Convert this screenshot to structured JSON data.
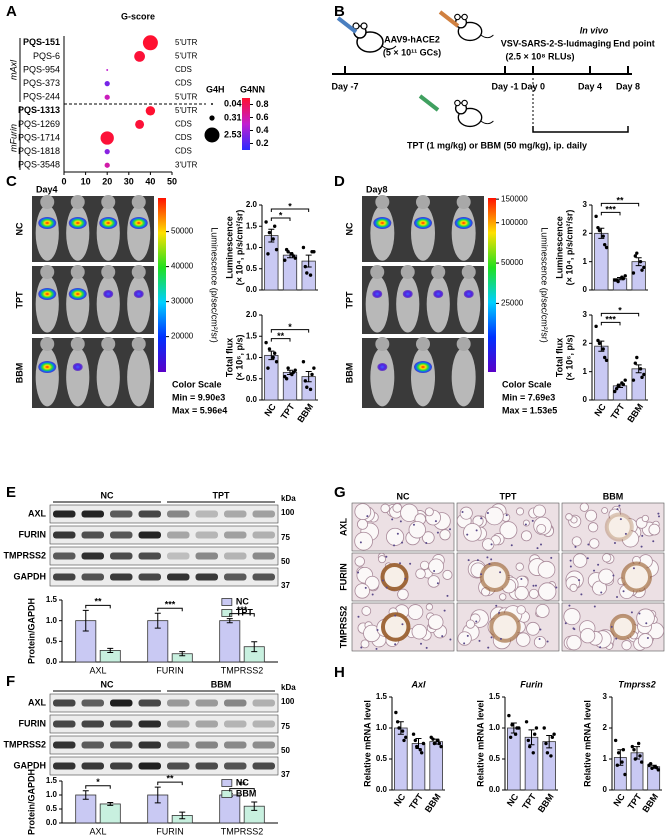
{
  "panel_labels": [
    "A",
    "B",
    "C",
    "D",
    "E",
    "F",
    "G",
    "H"
  ],
  "chart_data": [
    {
      "type": "bubble",
      "title": "G-score",
      "groups": [
        {
          "name": "mAxl",
          "categories": [
            "PQS-151",
            "PQS-6",
            "PQS-954",
            "PQS-373",
            "PQS-244"
          ],
          "regions": [
            "5'UTR",
            "5'UTR",
            "CDS",
            "CDS",
            "5'UTR"
          ],
          "x": [
            40,
            35,
            20,
            20,
            20
          ],
          "size": [
            2.53,
            1.3,
            0.04,
            0.31,
            0.31
          ],
          "g4nn": [
            0.9,
            0.88,
            0.5,
            0.3,
            0.55
          ]
        },
        {
          "name": "mFurin",
          "categories": [
            "PQS-1313",
            "PQS-1269",
            "PQS-1714",
            "PQS-1818",
            "PQS-3548"
          ],
          "regions": [
            "5'UTR",
            "CDS",
            "CDS",
            "CDS",
            "3'UTR"
          ],
          "x": [
            40,
            35,
            20,
            20,
            20
          ],
          "size": [
            1.0,
            0.9,
            2.0,
            0.31,
            0.31
          ],
          "g4nn": [
            0.9,
            0.88,
            0.88,
            0.35,
            0.6
          ]
        }
      ],
      "xlim": [
        0,
        50
      ],
      "xticks": [
        0,
        10,
        20,
        30,
        40,
        50
      ],
      "size_legend": {
        "title": "G4H",
        "values": [
          0.04,
          0.31,
          2.53
        ]
      },
      "color_legend": {
        "title": "G4NN",
        "lim": [
          0.1,
          0.9
        ],
        "ticks": [
          0.2,
          0.4,
          0.6,
          0.8
        ]
      }
    },
    {
      "type": "bar",
      "ylabel": [
        "Luminescence",
        "(× 10⁴, p/s/cm²/sr)"
      ],
      "categories": [
        null,
        null,
        null
      ],
      "values": [
        1.28,
        0.82,
        0.68
      ],
      "errors": [
        0.15,
        0.06,
        0.14
      ],
      "points": [
        [
          1.6,
          1.35,
          1.2,
          0.95,
          0.85,
          1.5
        ],
        [
          0.7,
          0.9,
          0.85,
          0.75,
          0.95,
          0.8
        ],
        [
          1.0,
          0.4,
          0.35,
          0.9,
          0.55,
          0.9
        ]
      ],
      "ylim": [
        0,
        2
      ],
      "yticks": [
        {
          "value": 0,
          "label": "0.0"
        },
        0.5,
        {
          "value": 1,
          "label": "1.0"
        },
        1.5,
        {
          "value": 2,
          "label": "2.0"
        }
      ],
      "color": "#c9c9f3",
      "annotations": [
        {
          "text": "*",
          "bracket": [
            0,
            1
          ]
        },
        {
          "text": "*",
          "bracket": [
            0,
            2
          ]
        }
      ]
    },
    {
      "type": "bar",
      "ylabel": [
        "Total flux",
        "(× 10⁶, p/s)"
      ],
      "categories": [
        "NC",
        "TPT",
        "BBM"
      ],
      "values": [
        1.05,
        0.65,
        0.55
      ],
      "errors": [
        0.1,
        0.05,
        0.12
      ],
      "points": [
        [
          1.35,
          1.2,
          1.0,
          0.9,
          0.75,
          1.1
        ],
        [
          0.55,
          0.75,
          0.6,
          0.7,
          0.5,
          0.65
        ],
        [
          0.9,
          0.3,
          0.25,
          0.75,
          0.45,
          0.6
        ]
      ],
      "ylim": [
        0,
        2
      ],
      "yticks": [
        {
          "value": 0,
          "label": "0.0"
        },
        0.5,
        {
          "value": 1,
          "label": "1.0"
        },
        1.5,
        {
          "value": 2,
          "label": "2.0"
        }
      ],
      "color": "#c9c9f3",
      "annotations": [
        {
          "text": "**",
          "bracket": [
            0,
            1
          ]
        },
        {
          "text": "*",
          "bracket": [
            0,
            2
          ]
        }
      ]
    },
    {
      "type": "bar",
      "ylabel": [
        "Luminescence",
        "(× 10⁴, p/s/cm²/sr)"
      ],
      "categories": [
        null,
        null,
        null
      ],
      "values": [
        2.0,
        0.4,
        1.0
      ],
      "errors": [
        0.18,
        0.04,
        0.14
      ],
      "points": [
        [
          2.6,
          2.1,
          1.9,
          1.5,
          2.2,
          1.6
        ],
        [
          0.35,
          0.3,
          0.45,
          0.5,
          0.35,
          0.4
        ],
        [
          0.6,
          1.3,
          1.0,
          0.8,
          1.2,
          0.7
        ]
      ],
      "ylim": [
        0,
        3
      ],
      "yticks": [
        0,
        1,
        2,
        3
      ],
      "color": "#c9c9f3",
      "annotations": [
        {
          "text": "***",
          "bracket": [
            0,
            1
          ]
        },
        {
          "text": "**",
          "bracket": [
            0,
            2
          ]
        }
      ]
    },
    {
      "type": "bar",
      "ylabel": [
        "Total flux",
        "(× 10⁶, p/s)"
      ],
      "categories": [
        "NC",
        "TPT",
        "BBM"
      ],
      "values": [
        1.9,
        0.5,
        1.1
      ],
      "errors": [
        0.18,
        0.06,
        0.14
      ],
      "points": [
        [
          2.6,
          2.0,
          1.8,
          1.4,
          2.1,
          1.5
        ],
        [
          0.3,
          0.5,
          0.6,
          0.7,
          0.4,
          0.55
        ],
        [
          0.7,
          1.5,
          1.1,
          0.9,
          1.3,
          0.8
        ]
      ],
      "ylim": [
        0,
        3
      ],
      "yticks": [
        0,
        1,
        2,
        3
      ],
      "color": "#c9c9f3",
      "annotations": [
        {
          "text": "***",
          "bracket": [
            0,
            1
          ]
        },
        {
          "text": "*",
          "bracket": [
            0,
            2
          ]
        }
      ]
    },
    {
      "type": "grouped_bar",
      "ylabel": [
        "Protein/GAPDH"
      ],
      "categories": [
        "AXL",
        "FURIN",
        "TMPRSS2"
      ],
      "series": [
        {
          "name": "NC",
          "color": "#c9c9f3",
          "values": [
            1.0,
            1.0,
            1.0
          ],
          "errors": [
            0.25,
            0.18,
            0.05
          ]
        },
        {
          "name": "TPT",
          "color": "#c8f0df",
          "values": [
            0.28,
            0.2,
            0.37
          ],
          "errors": [
            0.05,
            0.05,
            0.12
          ]
        }
      ],
      "ylim": [
        0,
        1.5
      ],
      "yticks": [
        {
          "value": 0,
          "label": "0.0"
        },
        0.5,
        {
          "value": 1,
          "label": "1.0"
        },
        1.5
      ],
      "annotations": [
        "**",
        "***",
        "***"
      ]
    },
    {
      "type": "grouped_bar",
      "ylabel": [
        "Protein/GAPDH"
      ],
      "categories": [
        "AXL",
        "FURIN",
        "TMPRSS2"
      ],
      "series": [
        {
          "name": "NC",
          "color": "#c9c9f3",
          "values": [
            1.0,
            1.0,
            1.0
          ],
          "errors": [
            0.15,
            0.28,
            0.05
          ]
        },
        {
          "name": "BBM",
          "color": "#c8f0df",
          "values": [
            0.68,
            0.27,
            0.6
          ],
          "errors": [
            0.05,
            0.12,
            0.15
          ]
        }
      ],
      "ylim": [
        0,
        1.5
      ],
      "yticks": [
        {
          "value": 0,
          "label": "0.0"
        },
        0.5,
        {
          "value": 1,
          "label": "1.0"
        },
        1.5
      ],
      "annotations": [
        "*",
        "**",
        "**"
      ]
    },
    {
      "type": "bar",
      "title": "Axl",
      "ylabel": [
        "Relative mRNA level"
      ],
      "categories": [
        "NC",
        "TPT",
        "BBM"
      ],
      "values": [
        1.0,
        0.75,
        0.78
      ],
      "errors": [
        0.1,
        0.08,
        0.04
      ],
      "points": [
        [
          1.25,
          1.0,
          0.95,
          0.85,
          1.1,
          0.8
        ],
        [
          0.9,
          0.7,
          0.65,
          0.75,
          0.8,
          0.6
        ],
        [
          0.85,
          0.75,
          0.8,
          0.7,
          0.82,
          0.75
        ]
      ],
      "ylim": [
        0,
        1.5
      ],
      "yticks": [
        {
          "value": 0,
          "label": "0.0"
        },
        0.5,
        {
          "value": 1,
          "label": "1.0"
        },
        1.5
      ],
      "color": "#c9c9f3",
      "annotations": []
    },
    {
      "type": "bar",
      "title": "Furin",
      "ylabel": [
        "Relative mRNA level"
      ],
      "categories": [
        "NC",
        "TPT",
        "BBM"
      ],
      "values": [
        1.0,
        0.85,
        0.78
      ],
      "errors": [
        0.08,
        0.12,
        0.1
      ],
      "points": [
        [
          1.2,
          1.05,
          0.9,
          1.0,
          0.85,
          1.0
        ],
        [
          1.1,
          0.7,
          0.6,
          1.0,
          0.8,
          0.9
        ],
        [
          1.0,
          0.6,
          0.55,
          0.9,
          0.75,
          0.85
        ]
      ],
      "ylim": [
        0,
        1.5
      ],
      "yticks": [
        {
          "value": 0,
          "label": "0.0"
        },
        0.5,
        {
          "value": 1,
          "label": "1.0"
        },
        1.5
      ],
      "color": "#c9c9f3",
      "annotations": []
    },
    {
      "type": "bar",
      "title": "Tmprss2",
      "ylabel": [
        "Relative mRNA level"
      ],
      "categories": [
        "NC",
        "TPT",
        "BBM"
      ],
      "values": [
        1.05,
        1.2,
        0.75
      ],
      "errors": [
        0.25,
        0.2,
        0.05
      ],
      "points": [
        [
          1.6,
          1.2,
          0.9,
          0.5,
          0.8,
          1.3
        ],
        [
          1.4,
          1.0,
          1.5,
          0.9,
          1.3,
          1.1
        ],
        [
          0.8,
          0.7,
          0.75,
          0.65,
          0.85,
          0.72
        ]
      ],
      "ylim": [
        0,
        3
      ],
      "yticks": [
        0,
        1,
        2,
        3
      ],
      "color": "#c9c9f3",
      "annotations": []
    }
  ],
  "timeline": {
    "injection": "AAV9-hACE2",
    "dose": "(5 × 10¹¹ GCs)",
    "challenge": "VSV-SARS-2-S-luc",
    "titer": "(2.5 × 10⁸ RLUs)",
    "imaging": [
      "In vivo",
      "imaging"
    ],
    "end": "End point",
    "days": [
      "Day -7",
      "Day -1",
      "Day 0",
      "Day 4",
      "Day 8"
    ],
    "treatment": "TPT (1 mg/kg) or BBM (50 mg/kg), ip. daily"
  },
  "imaging": [
    {
      "day": "Day4",
      "rows": [
        "NC",
        "TPT",
        "BBM"
      ],
      "colorbar_title": "Luminescence (p/sec/cm²/sr)",
      "colorbar_lim": [
        9900,
        59600
      ],
      "colorbar_ticks": [
        50000,
        40000,
        30000,
        20000
      ],
      "colorbar_log": false,
      "scale_title": "Color Scale",
      "scale_min": "Min = 9.90e3",
      "scale_max": "Max = 5.96e4"
    },
    {
      "day": "Day8",
      "rows": [
        "NC",
        "TPT",
        "BBM"
      ],
      "colorbar_title": "Luminescence (p/sec/cm²/sr)",
      "colorbar_lim": [
        7690,
        153000
      ],
      "colorbar_ticks": [
        150000,
        100000,
        50000,
        25000
      ],
      "colorbar_log": true,
      "scale_title": "Color Scale",
      "scale_min": "Min = 7.69e3",
      "scale_max": "Max = 1.53e5"
    }
  ],
  "blots": [
    {
      "groups": [
        "NC",
        "TPT"
      ],
      "rows": [
        "AXL",
        "FURIN",
        "TMPRSS2",
        "GAPDH"
      ],
      "unit": "kDa",
      "markers": [
        "100",
        "75",
        "50",
        "37"
      ]
    },
    {
      "groups": [
        "NC",
        "BBM"
      ],
      "rows": [
        "AXL",
        "FURIN",
        "TMPRSS2",
        "GAPDH"
      ],
      "unit": "kDa",
      "markers": [
        "100",
        "75",
        "50",
        "37"
      ]
    }
  ],
  "ihc": {
    "columns": [
      "NC",
      "TPT",
      "BBM"
    ],
    "rows": [
      "AXL",
      "FURIN",
      "TMPRSS2"
    ]
  }
}
